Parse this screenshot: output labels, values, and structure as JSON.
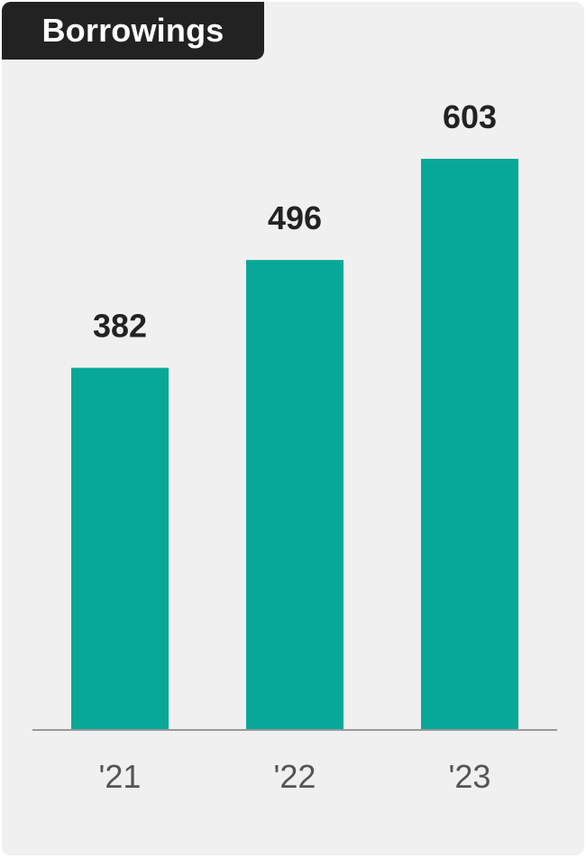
{
  "colors": {
    "bar": "#08a898",
    "background": "#f0f0f0",
    "title_bg": "#222222",
    "axis": "#999999"
  },
  "chart_data": {
    "type": "bar",
    "title": "Borrowings",
    "categories": [
      "'21",
      "'22",
      "'23"
    ],
    "values": [
      382,
      496,
      603
    ],
    "data_labels": [
      "382",
      "496",
      "603"
    ],
    "xlabel": "",
    "ylabel": "",
    "ylim": [
      0,
      603
    ],
    "grid": false,
    "legend": "none"
  }
}
